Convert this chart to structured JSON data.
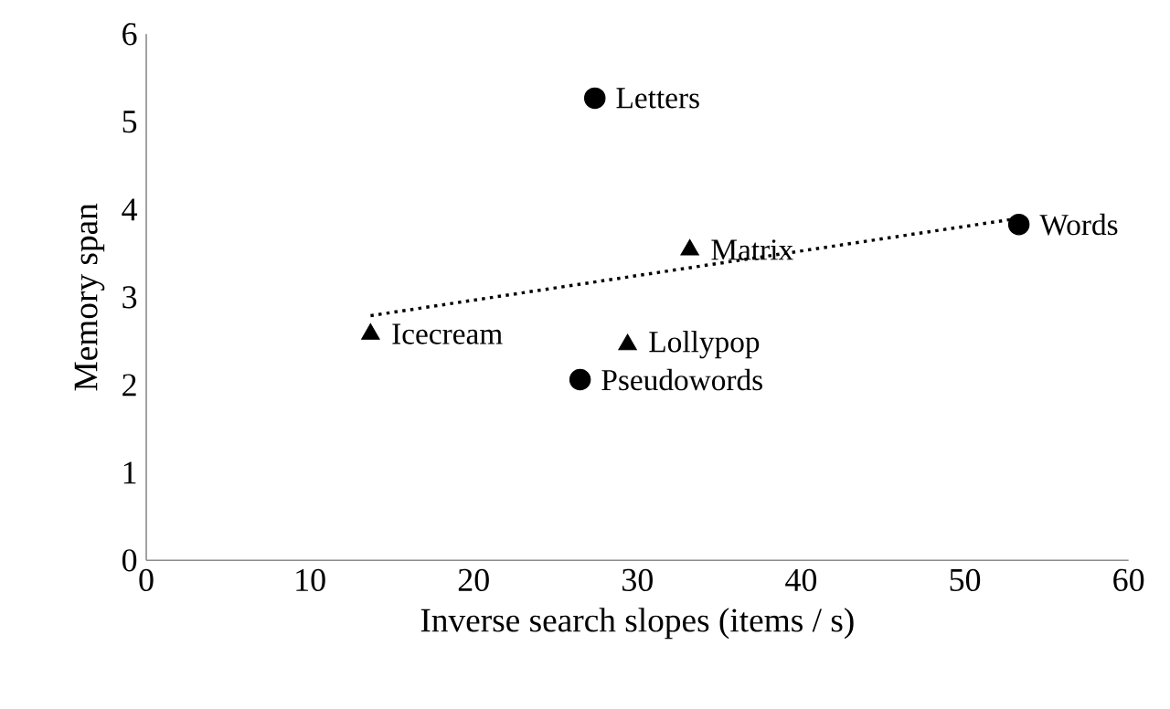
{
  "chart_data": {
    "type": "scatter",
    "xlabel": "Inverse search slopes (items / s)",
    "ylabel": "Memory span",
    "xlim": [
      0,
      60
    ],
    "ylim": [
      0,
      6
    ],
    "xticks": [
      0,
      10,
      20,
      30,
      40,
      50,
      60
    ],
    "yticks": [
      0,
      1,
      2,
      3,
      4,
      5,
      6
    ],
    "grid": false,
    "series": [
      {
        "color": "#000000",
        "marker": "circle",
        "x": [
          27.4,
          53.3,
          26.5
        ],
        "values": [
          5.27,
          3.83,
          2.06
        ]
      },
      {
        "color": "#000000",
        "marker": "triangle",
        "x": [
          33.2,
          13.7,
          29.4
        ],
        "values": [
          3.54,
          2.58,
          2.46
        ]
      },
      {
        "type": "line",
        "color": "#000000",
        "marker": "none",
        "line_style": "dotted",
        "x": [
          13.7,
          53.3
        ],
        "values": [
          2.79,
          3.9
        ]
      }
    ],
    "annotations": [
      {
        "text": "Letters",
        "x": 27.4,
        "y": 5.27
      },
      {
        "text": "Words",
        "x": 53.3,
        "y": 3.83
      },
      {
        "text": "Pseudowords",
        "x": 26.5,
        "y": 2.06
      },
      {
        "text": "Matrix",
        "x": 33.2,
        "y": 3.54
      },
      {
        "text": "Icecream",
        "x": 13.7,
        "y": 2.58
      },
      {
        "text": "Lollypop",
        "x": 29.4,
        "y": 2.46
      }
    ]
  }
}
